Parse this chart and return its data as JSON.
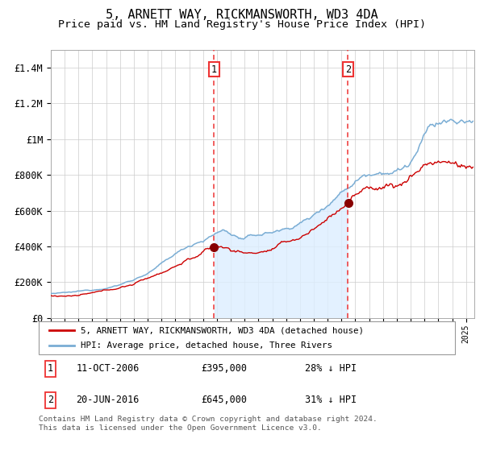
{
  "title": "5, ARNETT WAY, RICKMANSWORTH, WD3 4DA",
  "subtitle": "Price paid vs. HM Land Registry's House Price Index (HPI)",
  "title_fontsize": 11,
  "subtitle_fontsize": 9.5,
  "ylim": [
    0,
    1500000
  ],
  "yticks": [
    0,
    200000,
    400000,
    600000,
    800000,
    1000000,
    1200000,
    1400000
  ],
  "ytick_labels": [
    "£0",
    "£200K",
    "£400K",
    "£600K",
    "£800K",
    "£1M",
    "£1.2M",
    "£1.4M"
  ],
  "x_start_year": 1995,
  "x_end_year": 2025,
  "red_color": "#cc0000",
  "blue_color": "#7aadd4",
  "blue_fill_color": "#ddeeff",
  "marker_color": "#880000",
  "dashed_line_color": "#ee3333",
  "purchase1_year": 2006.79,
  "purchase1_value": 395000,
  "purchase2_year": 2016.47,
  "purchase2_value": 645000,
  "legend1": "5, ARNETT WAY, RICKMANSWORTH, WD3 4DA (detached house)",
  "legend2": "HPI: Average price, detached house, Three Rivers",
  "annot1_date": "11-OCT-2006",
  "annot1_price": "£395,000",
  "annot1_hpi": "28% ↓ HPI",
  "annot2_date": "20-JUN-2016",
  "annot2_price": "£645,000",
  "annot2_hpi": "31% ↓ HPI",
  "footer": "Contains HM Land Registry data © Crown copyright and database right 2024.\nThis data is licensed under the Open Government Licence v3.0.",
  "plot_bg_color": "#ffffff"
}
